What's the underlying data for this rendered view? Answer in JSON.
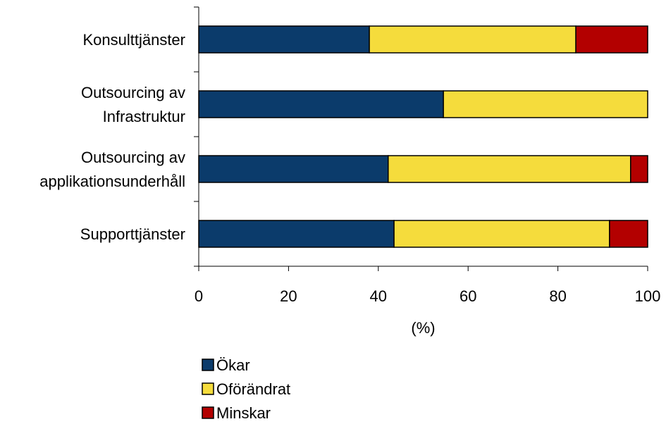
{
  "chart_data": {
    "type": "bar",
    "orientation": "horizontal",
    "stacked": true,
    "title": "",
    "xlabel": "(%)",
    "ylabel": "",
    "xlim": [
      0,
      100
    ],
    "xticks": [
      "0",
      "20",
      "40",
      "60",
      "80",
      "100"
    ],
    "grid": false,
    "legend_position": "bottom",
    "categories": [
      [
        "Konsulttjänster"
      ],
      [
        "Outsourcing av",
        "Infrastruktur"
      ],
      [
        "Outsourcing av",
        "applikationsunderhåll"
      ],
      [
        "Supporttjänster"
      ]
    ],
    "series": [
      {
        "name": "Ökar",
        "color": "#0b3b6b",
        "values": [
          38,
          54.5,
          42.2,
          43.5
        ]
      },
      {
        "name": "Oförändrat",
        "color": "#f5dc3c",
        "values": [
          46,
          45.5,
          54,
          48
        ]
      },
      {
        "name": "Minskar",
        "color": "#b30000",
        "values": [
          16,
          0,
          3.8,
          8.5
        ]
      }
    ]
  }
}
